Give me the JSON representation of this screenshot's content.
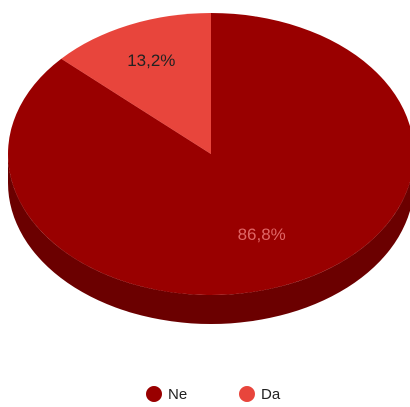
{
  "chart_data": {
    "type": "pie",
    "style": "3d",
    "title": "",
    "slices": [
      {
        "label": "Ne",
        "value": 86.8,
        "display": "86,8%",
        "color": "#990000",
        "side_color": "#6b0000",
        "label_color": "#e06666"
      },
      {
        "label": "Da",
        "value": 13.2,
        "display": "13,2%",
        "color": "#e8453c",
        "side_color": "#a8302a",
        "label_color": "#222222"
      }
    ],
    "legend": {
      "position": "bottom",
      "items": [
        "Ne",
        "Da"
      ]
    }
  }
}
